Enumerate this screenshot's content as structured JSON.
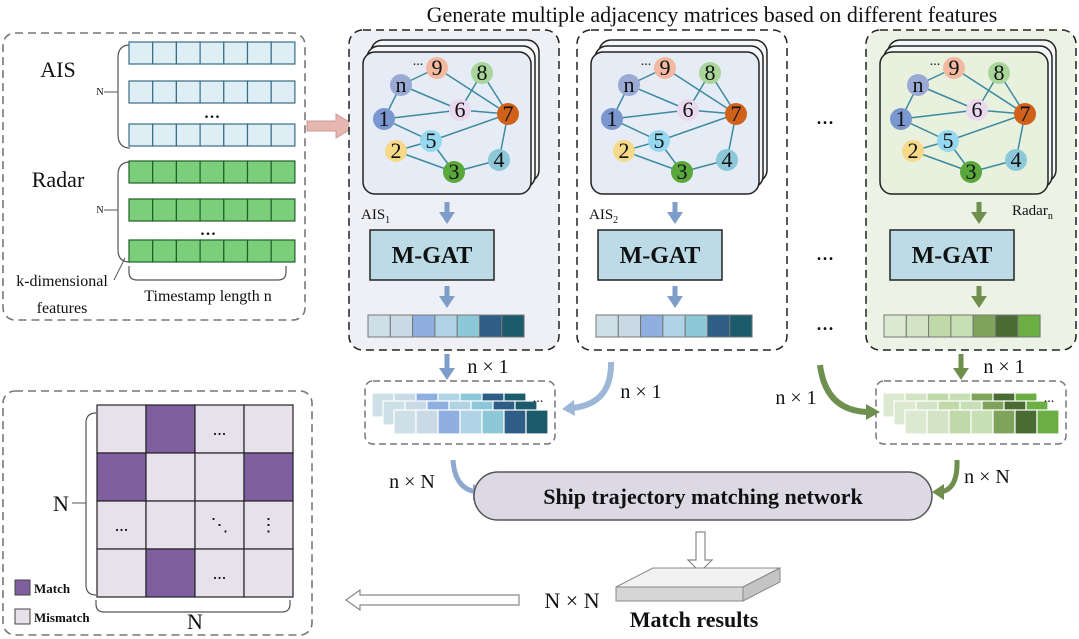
{
  "title": "Generate multiple adjacency matrices based on different features",
  "input": {
    "ais_label": "AIS",
    "radar_label": "Radar",
    "n_label": "N",
    "dots": "...",
    "kdim_line1": "k-dimensional",
    "kdim_line2": "features",
    "timestamp_label": "Timestamp length n"
  },
  "panels": [
    {
      "id": "ais1",
      "label_main": "AIS",
      "label_sub": "1",
      "model": "M-GAT",
      "colors": [
        "#cde0e8",
        "#c9d9e6",
        "#8fafe0",
        "#b1d3e6",
        "#8cc8d8",
        "#2e5e86",
        "#1b5b6b"
      ]
    },
    {
      "id": "ais2",
      "label_main": "AIS",
      "label_sub": "2",
      "model": "M-GAT",
      "colors": [
        "#cde0e8",
        "#c9d9e6",
        "#8fafe0",
        "#b1d3e6",
        "#8cc8d8",
        "#2e5e86",
        "#1b5b6b"
      ]
    },
    {
      "id": "radarn",
      "label_main": "Radar",
      "label_sub": "n",
      "model": "M-GAT",
      "colors": [
        "#dbe9d0",
        "#d2e3c6",
        "#bfd9a8",
        "#c8deb5",
        "#7fa35a",
        "#4a6b33",
        "#6aae44"
      ]
    }
  ],
  "graph_nodes": [
    {
      "label": "n",
      "color": "#9aaad4"
    },
    {
      "label": "9",
      "color": "#f3b8a0"
    },
    {
      "label": "8",
      "color": "#a9d49a"
    },
    {
      "label": "6",
      "color": "#ead8ee"
    },
    {
      "label": "7",
      "color": "#d0611b"
    },
    {
      "label": "1",
      "color": "#7b97cf"
    },
    {
      "label": "5",
      "color": "#96d8f0"
    },
    {
      "label": "2",
      "color": "#f7d98a"
    },
    {
      "label": "3",
      "color": "#5aa83c"
    },
    {
      "label": "4",
      "color": "#8cc8d8"
    }
  ],
  "graph_dots": "...",
  "ellipsis": "...",
  "n_times_1": "n × 1",
  "n_times_N": "n × N",
  "network_label": "Ship trajectory matching network",
  "result_size": "N × N",
  "result_label": "Match results",
  "matrix": {
    "row_label": "N",
    "col_label": "N",
    "match_color": "#7f5fa0",
    "mismatch_color": "#e6e1ea",
    "pattern": [
      [
        0,
        1,
        0,
        0
      ],
      [
        1,
        0,
        0,
        1
      ],
      [
        0,
        0,
        0,
        0
      ],
      [
        0,
        1,
        0,
        0
      ]
    ],
    "cell_text": [
      [
        "",
        "",
        "...",
        ""
      ],
      [
        "",
        "",
        "",
        ""
      ],
      [
        "...",
        "",
        "⋱",
        "⋮"
      ],
      [
        "",
        "",
        "...",
        ""
      ]
    ],
    "legend_match": "Match",
    "legend_mismatch": "Mismatch"
  }
}
